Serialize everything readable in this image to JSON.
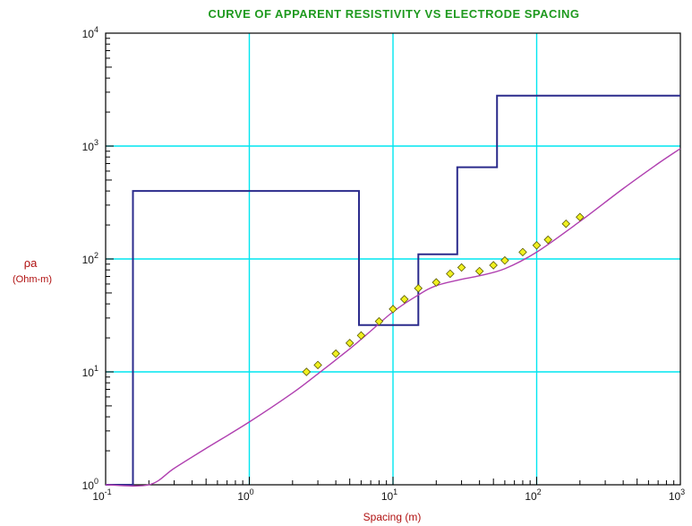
{
  "chart_data": {
    "type": "line",
    "title": "CURVE OF APPARENT RESISTIVITY VS ELECTRODE SPACING",
    "xlabel": "Spacing (m)",
    "ylabel_symbol": "ρa",
    "ylabel_units": "(Ohm-m)",
    "x_scale": "log",
    "y_scale": "log",
    "xlim": [
      0.1,
      1000
    ],
    "ylim": [
      1,
      10000
    ],
    "grid": true,
    "x_ticks": [
      {
        "base": "10",
        "exp": "-1"
      },
      {
        "base": "10",
        "exp": "0"
      },
      {
        "base": "10",
        "exp": "1"
      },
      {
        "base": "10",
        "exp": "2"
      },
      {
        "base": "10",
        "exp": "3"
      }
    ],
    "y_ticks": [
      {
        "base": "10",
        "exp": "0"
      },
      {
        "base": "10",
        "exp": "1"
      },
      {
        "base": "10",
        "exp": "2"
      },
      {
        "base": "10",
        "exp": "3"
      },
      {
        "base": "10",
        "exp": "4"
      }
    ],
    "colors": {
      "title": "#1f9a1f",
      "axis_label": "#b01010",
      "grid": "#00e6f0",
      "model": "#2b2b8c",
      "fitted_curve": "#b040b0",
      "data_marker": "#f0f020",
      "data_marker_edge": "#5a5a00"
    },
    "series": [
      {
        "kind": "step-model",
        "points": [
          [
            0.1,
            1
          ],
          [
            0.155,
            1
          ],
          [
            0.155,
            400
          ],
          [
            5.8,
            400
          ],
          [
            5.8,
            26
          ],
          [
            15,
            26
          ],
          [
            15,
            110
          ],
          [
            28,
            110
          ],
          [
            28,
            650
          ],
          [
            53,
            650
          ],
          [
            53,
            2800
          ],
          [
            1000,
            2800
          ]
        ]
      },
      {
        "kind": "fitted-curve",
        "points": [
          [
            0.1,
            1
          ],
          [
            0.2,
            1
          ],
          [
            0.3,
            1.4
          ],
          [
            0.5,
            2.1
          ],
          [
            1,
            3.6
          ],
          [
            2,
            6.5
          ],
          [
            3,
            9.6
          ],
          [
            5,
            16
          ],
          [
            7,
            23
          ],
          [
            10,
            34
          ],
          [
            15,
            48
          ],
          [
            20,
            58
          ],
          [
            30,
            66
          ],
          [
            40,
            71
          ],
          [
            60,
            82
          ],
          [
            100,
            115
          ],
          [
            200,
            215
          ],
          [
            400,
            420
          ],
          [
            700,
            700
          ],
          [
            1000,
            950
          ]
        ]
      },
      {
        "kind": "observed-data",
        "points": [
          [
            2.5,
            10
          ],
          [
            3,
            11.5
          ],
          [
            4,
            14.5
          ],
          [
            5,
            18
          ],
          [
            6,
            21
          ],
          [
            8,
            28
          ],
          [
            10,
            36
          ],
          [
            12,
            44
          ],
          [
            15,
            55
          ],
          [
            20,
            62
          ],
          [
            25,
            74
          ],
          [
            30,
            84
          ],
          [
            40,
            78
          ],
          [
            50,
            88
          ],
          [
            60,
            97
          ],
          [
            80,
            115
          ],
          [
            100,
            132
          ],
          [
            120,
            148
          ],
          [
            160,
            205
          ],
          [
            200,
            235
          ]
        ]
      }
    ]
  }
}
